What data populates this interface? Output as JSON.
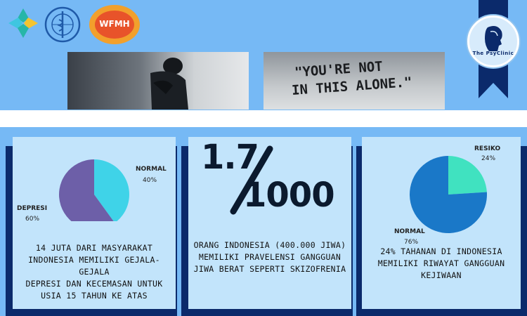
{
  "logos": {
    "moh": "moh-logo",
    "who": "who-logo",
    "wfmh": "WFMH"
  },
  "photos": {
    "left_alt": "sad-person-photo",
    "right_line1": "\"YOU'RE  NOT",
    "right_line2": "IN  THIS  ALONE.\""
  },
  "badge": {
    "text": "The PsyClinic"
  },
  "cards": [
    {
      "chart_data": {
        "type": "pie",
        "labels": [
          "NORMAL",
          "DEPRESI"
        ],
        "values": [
          40,
          60
        ],
        "colors": [
          "#3fd3e8",
          "#6d5fa8"
        ],
        "annotations": [
          "40%",
          "60%"
        ]
      },
      "label_normal": "NORMAL",
      "pct_normal": "40%",
      "label_depresi": "DEPRESI",
      "pct_depresi": "60%",
      "desc": [
        "14 JUTA DARI MASYARAKAT",
        "INDONESIA MEMILIKI GEJALA-GEJALA",
        "DEPRESI DAN KECEMASAN UNTUK",
        "USIA 15 TAHUN KE ATAS"
      ]
    },
    {
      "numerator": "1.7",
      "denominator": "1000",
      "desc": [
        "ORANG INDONESIA (400.000 JIWA)",
        "MEMILIKI PRAVELENSI GANGGUAN",
        "JIWA BERAT SEPERTI SKIZOFRENIA"
      ]
    },
    {
      "chart_data": {
        "type": "pie",
        "labels": [
          "RESIKO",
          "NORMAL"
        ],
        "values": [
          24,
          76
        ],
        "colors": [
          "#40e2c0",
          "#1a78c8"
        ],
        "annotations": [
          "24%",
          "76%"
        ]
      },
      "label_resiko": "RESIKO",
      "pct_resiko": "24%",
      "label_normal": "NORMAL",
      "pct_normal": "76%",
      "desc": [
        "24% TAHANAN DI INDONESIA",
        "MEMILIKI RIWAYAT GANGGUAN",
        "KEJIWAAN"
      ]
    }
  ]
}
